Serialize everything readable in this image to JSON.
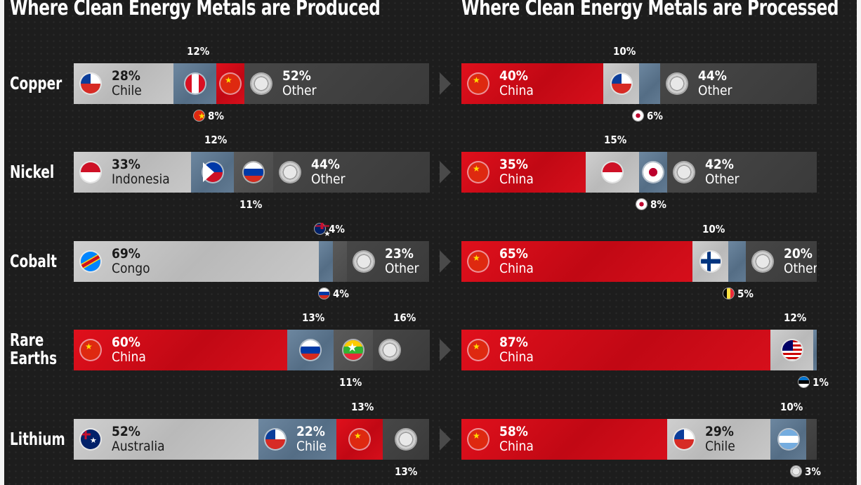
{
  "titles": {
    "produced": "Where Clean Energy Metals are Produced",
    "processed": "Where Clean Energy Metals are Processed"
  },
  "metals": [
    {
      "name": "Copper",
      "name2": ""
    },
    {
      "name": "Nickel",
      "name2": ""
    },
    {
      "name": "Cobalt",
      "name2": ""
    },
    {
      "name": "Rare",
      "name2": "Earths"
    },
    {
      "name": "Lithium",
      "name2": ""
    }
  ],
  "chart_data": [
    {
      "type": "bar",
      "title": "Where Clean Energy Metals are Produced",
      "orientation": "horizontal-stacked-100",
      "categories": [
        "Copper",
        "Nickel",
        "Cobalt",
        "Rare Earths",
        "Lithium"
      ],
      "rows": [
        {
          "segments": [
            {
              "country": "Chile",
              "flag": "chile-flag",
              "value": 28,
              "pct": "28%",
              "name": "Chile",
              "color": "grey"
            },
            {
              "country": "Peru",
              "flag": "peru-flag",
              "value": 12,
              "pct": "12%",
              "color": "blue"
            },
            {
              "country": "China",
              "flag": "china-flag",
              "value": 8,
              "pct": "8%",
              "color": "red"
            },
            {
              "country": "Other",
              "flag": "globe-icon",
              "value": 52,
              "pct": "52%",
              "name": "Other",
              "color": "dark"
            }
          ]
        },
        {
          "segments": [
            {
              "country": "Indonesia",
              "flag": "indonesia-flag",
              "value": 33,
              "pct": "33%",
              "name": "Indonesia",
              "color": "grey"
            },
            {
              "country": "Philippines",
              "flag": "philippines-flag",
              "value": 12,
              "pct": "12%",
              "color": "blue"
            },
            {
              "country": "Russia",
              "flag": "russia-flag",
              "value": 11,
              "pct": "11%",
              "color": "mid"
            },
            {
              "country": "Other",
              "flag": "globe-icon",
              "value": 44,
              "pct": "44%",
              "name": "Other",
              "color": "dark"
            }
          ]
        },
        {
          "segments": [
            {
              "country": "Congo",
              "flag": "congo-flag",
              "value": 69,
              "pct": "69%",
              "name": "Congo",
              "color": "grey"
            },
            {
              "country": "Australia",
              "flag": "australia-flag",
              "value": 4,
              "pct": "4%",
              "color": "blue"
            },
            {
              "country": "Russia",
              "flag": "russia-flag",
              "value": 4,
              "pct": "4%",
              "color": "mid"
            },
            {
              "country": "Other",
              "flag": "globe-icon",
              "value": 23,
              "pct": "23%",
              "name": "Other",
              "color": "dark"
            }
          ]
        },
        {
          "segments": [
            {
              "country": "China",
              "flag": "china-flag",
              "value": 60,
              "pct": "60%",
              "name": "China",
              "color": "red"
            },
            {
              "country": "Russia",
              "flag": "russia-flag",
              "value": 13,
              "pct": "13%",
              "color": "blue"
            },
            {
              "country": "Myanmar",
              "flag": "myanmar-flag",
              "value": 11,
              "pct": "11%",
              "color": "mid"
            },
            {
              "country": "Other",
              "flag": "globe-icon",
              "value": 16,
              "pct": "16%",
              "color": "dark"
            }
          ]
        },
        {
          "segments": [
            {
              "country": "Australia",
              "flag": "australia-flag",
              "value": 52,
              "pct": "52%",
              "name": "Australia",
              "color": "grey"
            },
            {
              "country": "Chile",
              "flag": "chile-flag",
              "value": 22,
              "pct": "22%",
              "name": "Chile",
              "color": "blue"
            },
            {
              "country": "China",
              "flag": "china-flag",
              "value": 13,
              "pct": "13%",
              "color": "red"
            },
            {
              "country": "Other",
              "flag": "globe-icon",
              "value": 13,
              "pct": "13%",
              "color": "dark"
            }
          ]
        }
      ]
    },
    {
      "type": "bar",
      "title": "Where Clean Energy Metals are Processed",
      "orientation": "horizontal-stacked-100",
      "categories": [
        "Copper",
        "Nickel",
        "Cobalt",
        "Rare Earths",
        "Lithium"
      ],
      "rows": [
        {
          "segments": [
            {
              "country": "China",
              "flag": "china-flag",
              "value": 40,
              "pct": "40%",
              "name": "China",
              "color": "red"
            },
            {
              "country": "Chile",
              "flag": "chile-flag",
              "value": 10,
              "pct": "10%",
              "color": "grey"
            },
            {
              "country": "Japan",
              "flag": "japan-flag",
              "value": 6,
              "pct": "6%",
              "color": "blue"
            },
            {
              "country": "Other",
              "flag": "globe-icon",
              "value": 44,
              "pct": "44%",
              "name": "Other",
              "color": "dark"
            }
          ]
        },
        {
          "segments": [
            {
              "country": "China",
              "flag": "china-flag",
              "value": 35,
              "pct": "35%",
              "name": "China",
              "color": "red"
            },
            {
              "country": "Indonesia",
              "flag": "indonesia-flag",
              "value": 15,
              "pct": "15%",
              "color": "grey"
            },
            {
              "country": "Japan",
              "flag": "japan-flag",
              "value": 8,
              "pct": "8%",
              "color": "blue"
            },
            {
              "country": "Other",
              "flag": "globe-icon",
              "value": 42,
              "pct": "42%",
              "name": "Other",
              "color": "dark"
            }
          ]
        },
        {
          "segments": [
            {
              "country": "China",
              "flag": "china-flag",
              "value": 65,
              "pct": "65%",
              "name": "China",
              "color": "red"
            },
            {
              "country": "Finland",
              "flag": "finland-flag",
              "value": 10,
              "pct": "10%",
              "color": "grey"
            },
            {
              "country": "Belgium",
              "flag": "belgium-flag",
              "value": 5,
              "pct": "5%",
              "color": "blue"
            },
            {
              "country": "Other",
              "flag": "globe-icon",
              "value": 20,
              "pct": "20%",
              "name": "Other",
              "color": "dark"
            }
          ]
        },
        {
          "segments": [
            {
              "country": "China",
              "flag": "china-flag",
              "value": 87,
              "pct": "87%",
              "name": "China",
              "color": "red"
            },
            {
              "country": "Malaysia",
              "flag": "malaysia-flag",
              "value": 12,
              "pct": "12%",
              "color": "grey"
            },
            {
              "country": "Estonia",
              "flag": "estonia-flag",
              "value": 1,
              "pct": "1%",
              "color": "blue"
            }
          ]
        },
        {
          "segments": [
            {
              "country": "China",
              "flag": "china-flag",
              "value": 58,
              "pct": "58%",
              "name": "China",
              "color": "red"
            },
            {
              "country": "Chile",
              "flag": "chile-flag",
              "value": 29,
              "pct": "29%",
              "name": "Chile",
              "color": "grey"
            },
            {
              "country": "Argentina",
              "flag": "argentina-flag",
              "value": 10,
              "pct": "10%",
              "color": "blue"
            },
            {
              "country": "Other",
              "flag": "globe-icon",
              "value": 3,
              "pct": "3%",
              "color": "dark"
            }
          ]
        }
      ]
    }
  ]
}
